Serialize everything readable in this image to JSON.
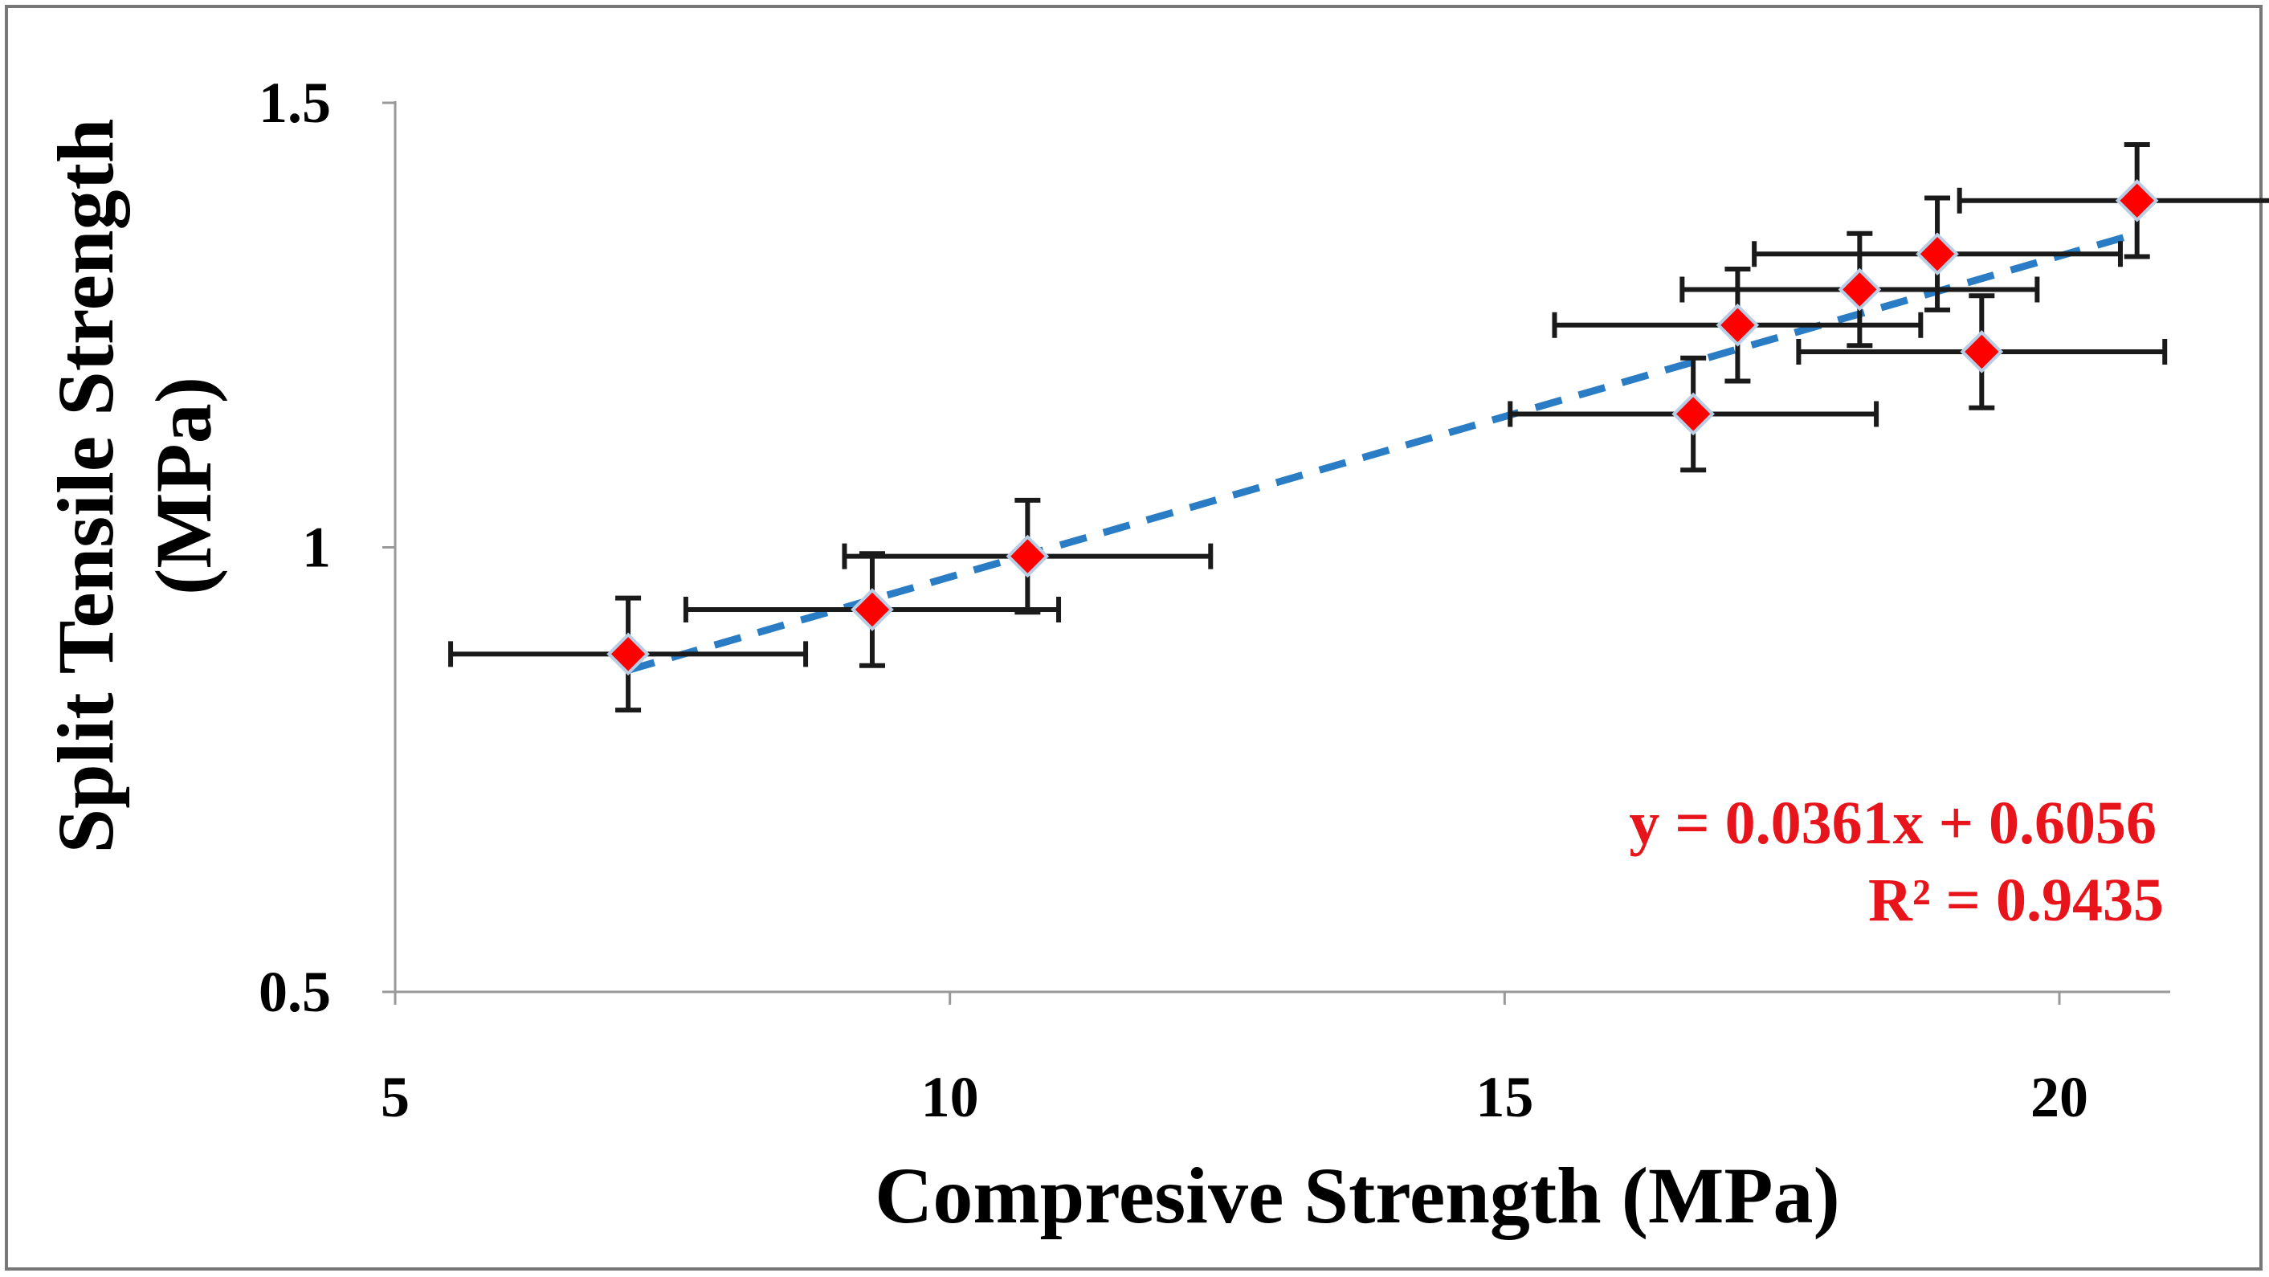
{
  "chart_data": {
    "type": "scatter",
    "xlabel": "Compresive Strength (MPa)",
    "ylabel_line1": "Split Tensile Strength",
    "ylabel_line2": "(MPa)",
    "xlim": [
      5,
      21
    ],
    "ylim": [
      0.5,
      1.5
    ],
    "xticks": [
      5,
      10,
      15,
      20
    ],
    "yticks": [
      0.5,
      1,
      1.5
    ],
    "xtick_labels": [
      "5",
      "10",
      "15",
      "20"
    ],
    "ytick_labels": [
      "0.5",
      "1",
      "1.5"
    ],
    "grid": false,
    "legend": "none",
    "points": [
      {
        "x": 7.1,
        "y": 0.88,
        "xerr": 1.6,
        "yerr": 0.063
      },
      {
        "x": 9.3,
        "y": 0.93,
        "xerr": 1.68,
        "yerr": 0.063
      },
      {
        "x": 10.7,
        "y": 0.99,
        "xerr": 1.65,
        "yerr": 0.063
      },
      {
        "x": 16.7,
        "y": 1.15,
        "xerr": 1.65,
        "yerr": 0.063
      },
      {
        "x": 17.1,
        "y": 1.25,
        "xerr": 1.65,
        "yerr": 0.063
      },
      {
        "x": 18.2,
        "y": 1.29,
        "xerr": 1.6,
        "yerr": 0.063
      },
      {
        "x": 18.9,
        "y": 1.33,
        "xerr": 1.65,
        "yerr": 0.063
      },
      {
        "x": 19.3,
        "y": 1.22,
        "xerr": 1.65,
        "yerr": 0.063
      },
      {
        "x": 20.7,
        "y": 1.39,
        "xerr": 1.6,
        "yerr": 0.063
      }
    ],
    "trendline": {
      "slope": 0.0361,
      "intercept": 0.6056,
      "x_range": [
        7.1,
        20.7
      ],
      "color": "#2a7dc4"
    },
    "equation_text": "y = 0.0361x + 0.6056",
    "r2_text": "R² = 0.9435",
    "colors": {
      "marker_fill": "#ff0000",
      "marker_stroke": "#b9cde5",
      "error_bar": "#1a1a1a",
      "axis": "#999999",
      "equation": "#e8141b"
    }
  }
}
